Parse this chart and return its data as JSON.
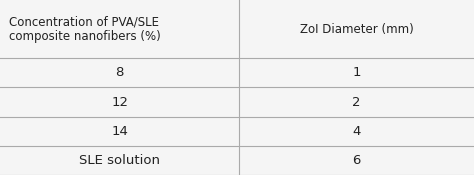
{
  "col1_header": "Concentration of PVA/SLE\ncomposite nanofibers (%)",
  "col2_header": "ZoI Diameter (mm)",
  "rows": [
    [
      "8",
      "1"
    ],
    [
      "12",
      "2"
    ],
    [
      "14",
      "4"
    ],
    [
      "SLE solution",
      "6"
    ]
  ],
  "background_color": "#f5f5f5",
  "line_color": "#aaaaaa",
  "text_color": "#222222",
  "header_fontsize": 8.5,
  "cell_fontsize": 9.5,
  "col_split": 0.505
}
